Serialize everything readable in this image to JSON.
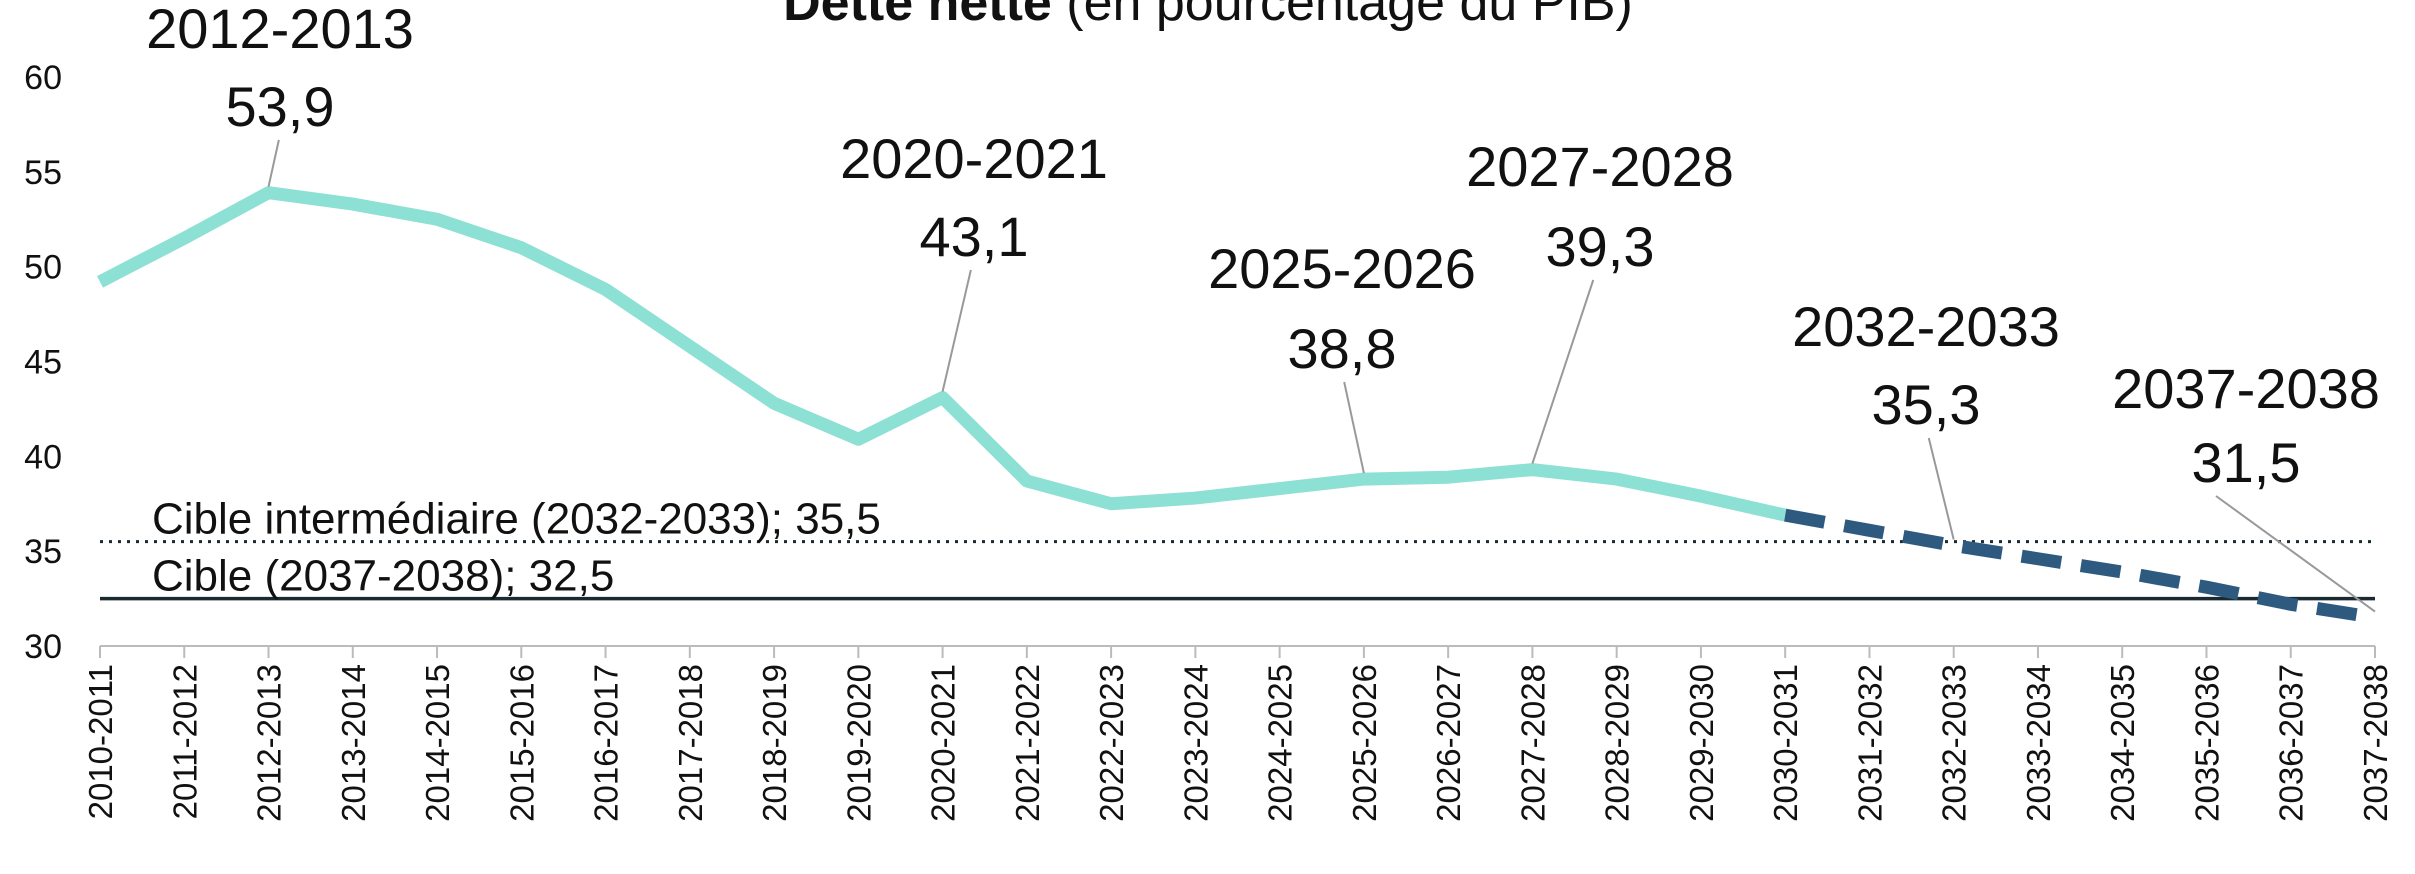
{
  "chart_data": {
    "type": "line",
    "title": "Dette nette",
    "subtitle": "(en pourcentage du PIB)",
    "categories": [
      "2010-2011",
      "2011-2012",
      "2012-2013",
      "2013-2014",
      "2014-2015",
      "2015-2016",
      "2016-2017",
      "2017-2018",
      "2018-2019",
      "2019-2020",
      "2020-2021",
      "2021-2022",
      "2022-2023",
      "2023-2024",
      "2024-2025",
      "2025-2026",
      "2026-2027",
      "2027-2028",
      "2028-2029",
      "2029-2030",
      "2030-2031",
      "2031-2032",
      "2032-2033",
      "2033-2034",
      "2034-2035",
      "2035-2036",
      "2036-2037",
      "2037-2038"
    ],
    "series": [
      {
        "color": "#8de0d4",
        "dashed": false,
        "values": [
          49.2,
          51.5,
          53.9,
          53.3,
          52.5,
          51.0,
          48.8,
          45.8,
          42.8,
          40.9,
          43.1,
          38.7,
          37.5,
          37.8,
          38.3,
          38.8,
          38.9,
          39.3,
          38.8,
          37.9,
          36.9,
          null,
          null,
          null,
          null,
          null,
          null,
          null
        ]
      },
      {
        "color": "#2e5a80",
        "dashed": true,
        "values": [
          null,
          null,
          null,
          null,
          null,
          null,
          null,
          null,
          null,
          null,
          null,
          null,
          null,
          null,
          null,
          null,
          null,
          null,
          null,
          null,
          36.9,
          36.1,
          35.3,
          34.6,
          33.9,
          33.1,
          32.2,
          31.5
        ]
      }
    ],
    "reference_lines": [
      {
        "label": "Cible  intermédiaire (2032-2033); 35,5",
        "value": 35.5,
        "style": "dotted"
      },
      {
        "label": "Cible (2037-2038); 32,5",
        "value": 32.5,
        "style": "solid"
      }
    ],
    "annotations": [
      {
        "category": "2012-2013",
        "text": "53,9"
      },
      {
        "category": "2020-2021",
        "text": "43,1"
      },
      {
        "category": "2025-2026",
        "text": "38,8"
      },
      {
        "category": "2027-2028",
        "text": "39,3"
      },
      {
        "category": "2032-2033",
        "text": "35,3"
      },
      {
        "category": "2037-2038",
        "text": "31,5"
      }
    ],
    "ylim": [
      30,
      60
    ],
    "yticks": [
      30,
      35,
      40,
      45,
      50,
      55,
      60
    ],
    "grid": false
  }
}
